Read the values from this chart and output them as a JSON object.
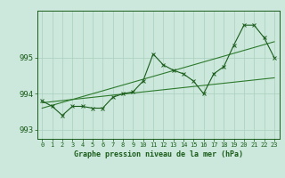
{
  "title": "Graphe pression niveau de la mer (hPa)",
  "xlabel_ticks": [
    "0",
    "1",
    "2",
    "3",
    "4",
    "5",
    "6",
    "7",
    "8",
    "9",
    "10",
    "11",
    "12",
    "13",
    "14",
    "15",
    "16",
    "17",
    "18",
    "19",
    "20",
    "21",
    "22",
    "23"
  ],
  "x": [
    0,
    1,
    2,
    3,
    4,
    5,
    6,
    7,
    8,
    9,
    10,
    11,
    12,
    13,
    14,
    15,
    16,
    17,
    18,
    19,
    20,
    21,
    22,
    23
  ],
  "y_main": [
    993.8,
    993.65,
    993.4,
    993.65,
    993.65,
    993.6,
    993.6,
    993.9,
    994.0,
    994.05,
    994.35,
    995.1,
    994.8,
    994.65,
    994.55,
    994.35,
    994.0,
    994.55,
    994.75,
    995.35,
    995.9,
    995.9,
    995.55,
    995.0
  ],
  "y_line1": [
    993.75,
    993.78,
    993.81,
    993.84,
    993.87,
    993.9,
    993.93,
    993.96,
    993.99,
    994.02,
    994.05,
    994.08,
    994.11,
    994.14,
    994.17,
    994.2,
    994.23,
    994.26,
    994.29,
    994.32,
    994.35,
    994.38,
    994.41,
    994.44
  ],
  "y_line2": [
    993.6,
    993.68,
    993.76,
    993.84,
    993.92,
    994.0,
    994.08,
    994.16,
    994.24,
    994.32,
    994.4,
    994.48,
    994.56,
    994.64,
    994.72,
    994.8,
    994.88,
    994.96,
    995.04,
    995.12,
    995.2,
    995.28,
    995.36,
    995.44
  ],
  "main_color": "#1a5c1a",
  "line_color": "#2d7a2d",
  "bg_color": "#cce8dc",
  "grid_color": "#aacfbf",
  "text_color": "#1a5c1a",
  "ylim": [
    992.75,
    996.3
  ],
  "yticks": [
    993,
    994,
    995
  ],
  "marker_size": 2.5
}
